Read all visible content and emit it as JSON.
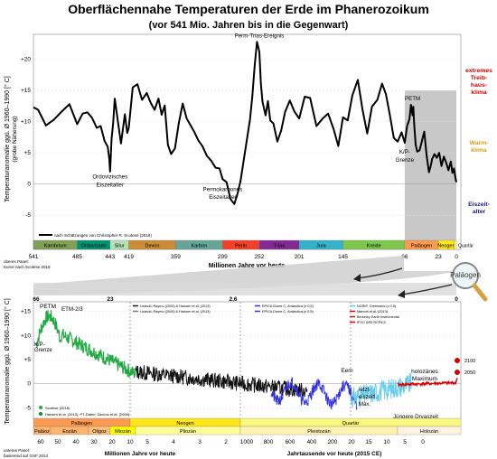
{
  "header": {
    "title": "Oberflächennahe Temperaturen der Erde im Phanerozoikum",
    "subtitle": "(vor 541 Mio. Jahren bis in die Gegenwart)"
  },
  "colors": {
    "upper_curve": "#000000",
    "grey_box": "#c8c8c8",
    "extreme_label": "#cc0000",
    "warm_label": "#d4a017",
    "ice_label": "#1a1a8c",
    "green_curve": "#22aa44",
    "black_curve": "#111111",
    "blue_curve": "#3333dd",
    "red_curve": "#dd0000",
    "lightblue_curve": "#66ccee",
    "cone_fill": "#cccccc"
  },
  "chart_data": [
    {
      "type": "line",
      "name": "upper-panel",
      "ylabel": "Temperaturanomalie ggü. Ø 1960–1990 [° C]",
      "ylabel_sub": "(grobe Näherung)",
      "xlabel": "Millionen Jahre vor heute",
      "xlim": [
        541,
        0
      ],
      "ylim": [
        -7,
        24
      ],
      "yticks": [
        -5,
        0,
        5,
        10,
        15,
        20
      ],
      "ytick_labels": [
        "-5",
        "0",
        "+5",
        "+10",
        "+15",
        "+20"
      ],
      "xticks": [
        541,
        485,
        443,
        419,
        359,
        299,
        252,
        201,
        145,
        66,
        23,
        0
      ],
      "xtick_labels": [
        "541",
        "485",
        "443",
        "419",
        "359",
        "299",
        "252",
        "201",
        "145",
        "66",
        "23",
        "0"
      ],
      "x": [
        541,
        535,
        525,
        515,
        505,
        495,
        485,
        478,
        472,
        466,
        460,
        455,
        450,
        446,
        444,
        443,
        441,
        439,
        437,
        433,
        429,
        424,
        421,
        419,
        414,
        408,
        402,
        396,
        391,
        386,
        381,
        377,
        373,
        369,
        365,
        360,
        355,
        350,
        345,
        340,
        335,
        330,
        325,
        319,
        314,
        308,
        303,
        299,
        294,
        289,
        284,
        280,
        276,
        272,
        268,
        264,
        261,
        258,
        255,
        252,
        250,
        248,
        246,
        244,
        241,
        238,
        234,
        229,
        224,
        219,
        213,
        207,
        201,
        194,
        187,
        179,
        171,
        164,
        157,
        151,
        145,
        139,
        133,
        126,
        120,
        114,
        108,
        101,
        95,
        90,
        85,
        80,
        75,
        70,
        66,
        63,
        60,
        58,
        56,
        55,
        54,
        52,
        50,
        47,
        44,
        41,
        38,
        35,
        33,
        31,
        28,
        25,
        22,
        19,
        16,
        13,
        10,
        7,
        5,
        3,
        1,
        0
      ],
      "y": [
        12.3,
        11.9,
        9.4,
        10.3,
        11.6,
        12.8,
        9.6,
        11.3,
        11.5,
        10.6,
        9.0,
        9.3,
        6.9,
        6.0,
        4.1,
        2.0,
        7.3,
        9.7,
        13.7,
        10.1,
        6.5,
        11.2,
        8.2,
        9.0,
        15.5,
        16.0,
        13.5,
        14.6,
        13.0,
        11.9,
        13.7,
        11.1,
        12.6,
        6.3,
        4.8,
        5.7,
        9.8,
        12.9,
        10.5,
        9.4,
        8.3,
        7.0,
        6.1,
        4.5,
        3.8,
        2.6,
        2.5,
        0.8,
        0.3,
        -2.4,
        -3.2,
        -1.6,
        0.5,
        3.8,
        7.1,
        10.3,
        14.0,
        18.9,
        22.8,
        21.2,
        16.1,
        13.2,
        12.1,
        11.0,
        13.3,
        10.2,
        9.7,
        6.8,
        8.6,
        11.6,
        13.4,
        11.6,
        10.5,
        14.0,
        13.8,
        9.3,
        10.5,
        11.3,
        8.8,
        6.1,
        10.7,
        10.2,
        14.2,
        16.7,
        11.9,
        8.1,
        12.4,
        13.5,
        16.1,
        14.4,
        11.0,
        7.4,
        6.8,
        8.3,
        6.6,
        9.3,
        10.4,
        12.7,
        11.0,
        12.4,
        9.7,
        6.3,
        5.2,
        5.4,
        6.9,
        8.4,
        4.6,
        1.9,
        2.8,
        4.0,
        4.8,
        4.2,
        5.0,
        2.9,
        4.4,
        3.4,
        2.2,
        3.6,
        1.8,
        2.5,
        0.9,
        0.3
      ],
      "series": [
        {
          "name": "nach Scotese (2018)",
          "legend": "nach Schätzungen von Christopher R. Scotese (2018)"
        }
      ],
      "annotations": [
        {
          "text": "Perm-Trias-Ereignis",
          "x": 252,
          "y": 23.5
        },
        {
          "text": "Ordovizisches",
          "x": 443,
          "y": 0.9
        },
        {
          "text": "Eiszeitalter",
          "x": 443,
          "y": -0.4
        },
        {
          "text": "Permokarbones",
          "x": 299,
          "y": -1.1
        },
        {
          "text": "Eiszeitalter",
          "x": 299,
          "y": -2.4
        },
        {
          "text": "PETM",
          "x": 56,
          "y": 13.4
        },
        {
          "text": "K/P-",
          "x": 66,
          "y": 4.9
        },
        {
          "text": "Grenze",
          "x": 66,
          "y": 3.6
        }
      ],
      "side_labels": [
        {
          "text": [
            "extremes",
            "Treib-",
            "haus-",
            "klima"
          ]
        },
        {
          "text": [
            "Warm-",
            "klima"
          ]
        },
        {
          "text": [
            "Eiszeit-",
            "alter"
          ]
        }
      ],
      "periods": [
        {
          "name": "Kambrium",
          "from": 541,
          "to": 485,
          "color": "#7fa056"
        },
        {
          "name": "Ordovizium",
          "from": 485,
          "to": 443,
          "color": "#009270"
        },
        {
          "name": "Silur",
          "from": 443,
          "to": 419,
          "color": "#b3e1b6"
        },
        {
          "name": "Devon",
          "from": 419,
          "to": 359,
          "color": "#cb8c37"
        },
        {
          "name": "Karbon",
          "from": 359,
          "to": 299,
          "color": "#67a599"
        },
        {
          "name": "Perm",
          "from": 299,
          "to": 252,
          "color": "#f04028"
        },
        {
          "name": "Trias",
          "from": 252,
          "to": 201,
          "color": "#812b92"
        },
        {
          "name": "Jura",
          "from": 201,
          "to": 145,
          "color": "#34b2c9"
        },
        {
          "name": "Kreide",
          "from": 145,
          "to": 66,
          "color": "#7fc64e"
        },
        {
          "name": "Paläogen",
          "from": 66,
          "to": 23,
          "color": "#fd9a52"
        },
        {
          "name": "Neogen",
          "from": 23,
          "to": 2.6,
          "color": "#ffe619"
        },
        {
          "name": "Quartär",
          "from": 2.6,
          "to": 0,
          "color": "#f9f97f"
        }
      ]
    },
    {
      "type": "line",
      "name": "lower-panel",
      "ylabel": "Temperaturanomalie ggü. Ø 1960–1990 [° C]",
      "xlabel": "Millionen Jahre vor heute",
      "xlabel2": "Jahrtausende vor heute (2015 CE)",
      "ylim": [
        -7,
        17
      ],
      "yticks": [
        -5,
        0,
        5,
        10,
        15
      ],
      "ytick_labels": [
        "-5",
        "0",
        "+5",
        "+10",
        "+15"
      ],
      "xtick_labels": [
        "60",
        "50",
        "40",
        "30",
        "20",
        "10",
        "5",
        "4",
        "3",
        "2",
        "1000",
        "800",
        "600",
        "400",
        "200",
        "20",
        "15",
        "10",
        "5",
        "0"
      ],
      "top_labels": [
        "66",
        "23",
        "2,6",
        "0"
      ],
      "annotations": [
        {
          "text": "PETM"
        },
        {
          "text": "ETM-2/3"
        },
        {
          "text": "K/P-"
        },
        {
          "text": "Grenze"
        },
        {
          "text": "Eem"
        },
        {
          "text": "holozänes"
        },
        {
          "text": "Maximum"
        },
        {
          "text": "letzt-"
        },
        {
          "text": "eiszeitl."
        },
        {
          "text": "Max."
        },
        {
          "text": "Jüngere Dryaszeit"
        },
        {
          "text": "2100"
        },
        {
          "text": "2050"
        }
      ],
      "legend_top": [
        "Lisiecki, Raymo (2005) & Hansen et al. (2013)",
        "EPICA Dome C, Antarctica (x 0,5)",
        "Lisiecki, Raymo (2005) & Hansen et al. (2013)",
        "EPICA Dome C, Antarctica (x 0,5)",
        "NGRIP, Greenland (x 0,5)",
        "Marcott et al. (2013)",
        "Berkeley Earth Instrumental",
        "IPCC AR5 RCP8.5"
      ],
      "legend_bottom": [
        "Scotese (2018)",
        "Hansen et al. (2013), PT-Daten: Zachos et al. (2008)"
      ],
      "epochs": [
        {
          "name": "Paläoz",
          "color": "#fdb46c"
        },
        {
          "name": "Eozän",
          "color": "#fdb46c"
        },
        {
          "name": "Oligoz",
          "color": "#fdc07a"
        },
        {
          "name": "Miozän",
          "color": "#ffff00"
        },
        {
          "name": "Pliozän",
          "color": "#ffff99"
        },
        {
          "name": "Pleistozän",
          "color": "#fff2ae"
        },
        {
          "name": "Holozän",
          "color": "#fef2e0"
        }
      ],
      "eras": [
        {
          "name": "Paläogen",
          "color": "#fd9a52"
        },
        {
          "name": "Neogen",
          "color": "#ffe619"
        },
        {
          "name": "Quartär",
          "color": "#f9f97f"
        }
      ]
    }
  ],
  "middle": {
    "upper_caption_1": "oberes Panel:",
    "upper_caption_2": "Kurve nach Scotese 2018",
    "lower_caption_1": "unteres Panel:",
    "lower_caption_2": "basierend auf GSF 2014",
    "magnifier_label": "Paläogen"
  }
}
